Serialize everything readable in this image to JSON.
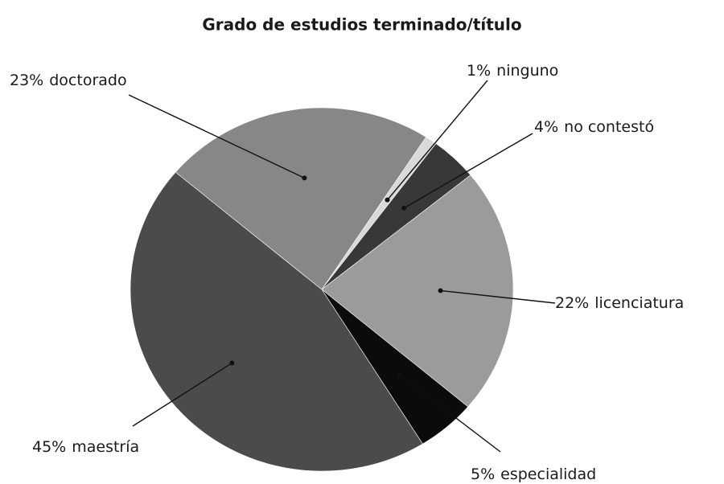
{
  "chart_data": {
    "type": "pie",
    "title": "Grado de estudios terminado/título",
    "categories": [
      "ninguno",
      "no contestó",
      "licenciatura",
      "especialidad",
      "maestría",
      "doctorado"
    ],
    "values": [
      1,
      4,
      22,
      5,
      45,
      23
    ],
    "value_labels": [
      "1%",
      "4%",
      "22%",
      "5%",
      "45%",
      "23%"
    ],
    "colors": [
      "#d9d9d9",
      "#383838",
      "#9b9b9b",
      "#0b0b0b",
      "#4b4b4b",
      "#878787"
    ]
  }
}
